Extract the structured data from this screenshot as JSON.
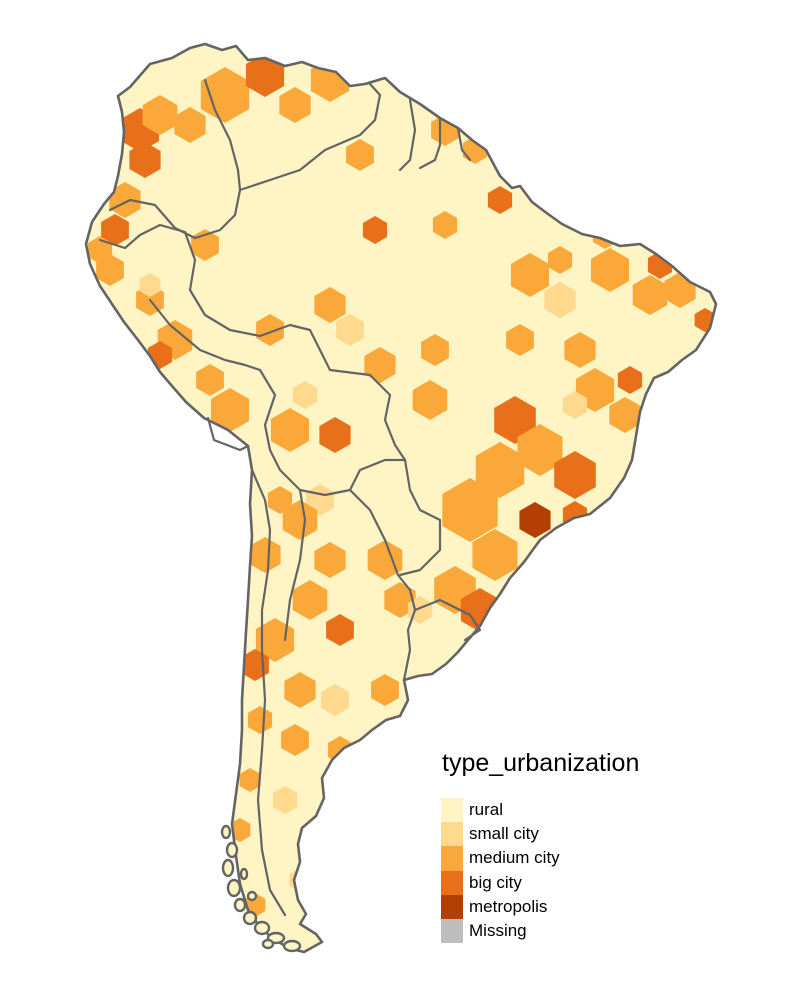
{
  "legend": {
    "title": "type_urbanization",
    "items": [
      {
        "label": "rural",
        "color": "#FFF5C4"
      },
      {
        "label": "small city",
        "color": "#FED98E"
      },
      {
        "label": "medium city",
        "color": "#FBA83A"
      },
      {
        "label": "big city",
        "color": "#E8701B"
      },
      {
        "label": "metropolis",
        "color": "#B33F04"
      },
      {
        "label": "Missing",
        "color": "#BEBEBE"
      }
    ]
  },
  "colors": {
    "border": "#646464",
    "background": "#FFFFFF"
  }
}
